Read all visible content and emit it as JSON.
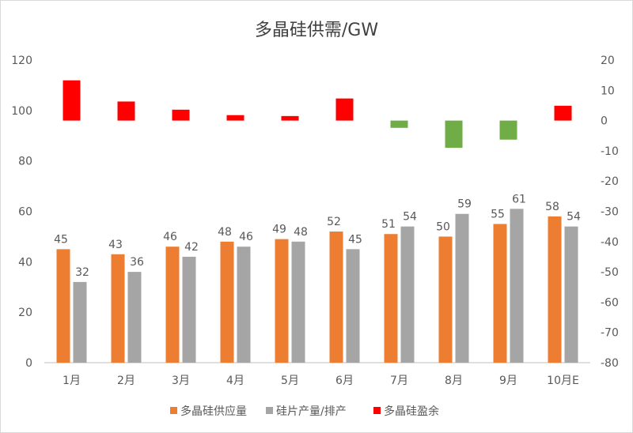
{
  "chart_data": {
    "type": "bar",
    "title": "多晶硅供需/GW",
    "categories": [
      "1月",
      "2月",
      "3月",
      "4月",
      "5月",
      "6月",
      "7月",
      "8月",
      "9月",
      "10月E"
    ],
    "series": [
      {
        "name": "多晶硅供应量",
        "axis": "left",
        "color": "#ED7D31",
        "values": [
          45,
          43,
          46,
          48,
          49,
          52,
          51,
          50,
          55,
          58
        ]
      },
      {
        "name": "硅片产量/排产",
        "axis": "left",
        "color": "#A5A5A5",
        "values": [
          32,
          36,
          42,
          46,
          48,
          45,
          54,
          59,
          61,
          54
        ]
      },
      {
        "name": "多晶硅盈余",
        "axis": "right",
        "color": "#FF0000",
        "negative_color": "#70AD47",
        "values": [
          13.3,
          6.3,
          3.6,
          1.8,
          1.5,
          7.3,
          -2.4,
          -9,
          -6.3,
          4.9
        ]
      }
    ],
    "left_axis": {
      "ylim": [
        0,
        120
      ],
      "ticks": [
        0,
        20,
        40,
        60,
        80,
        100,
        120
      ]
    },
    "right_axis": {
      "ylim": [
        -80,
        20
      ],
      "ticks": [
        -80,
        -70,
        -60,
        -50,
        -40,
        -30,
        -20,
        -10,
        0,
        10,
        20
      ]
    },
    "grid": false,
    "legend": "bottom"
  }
}
